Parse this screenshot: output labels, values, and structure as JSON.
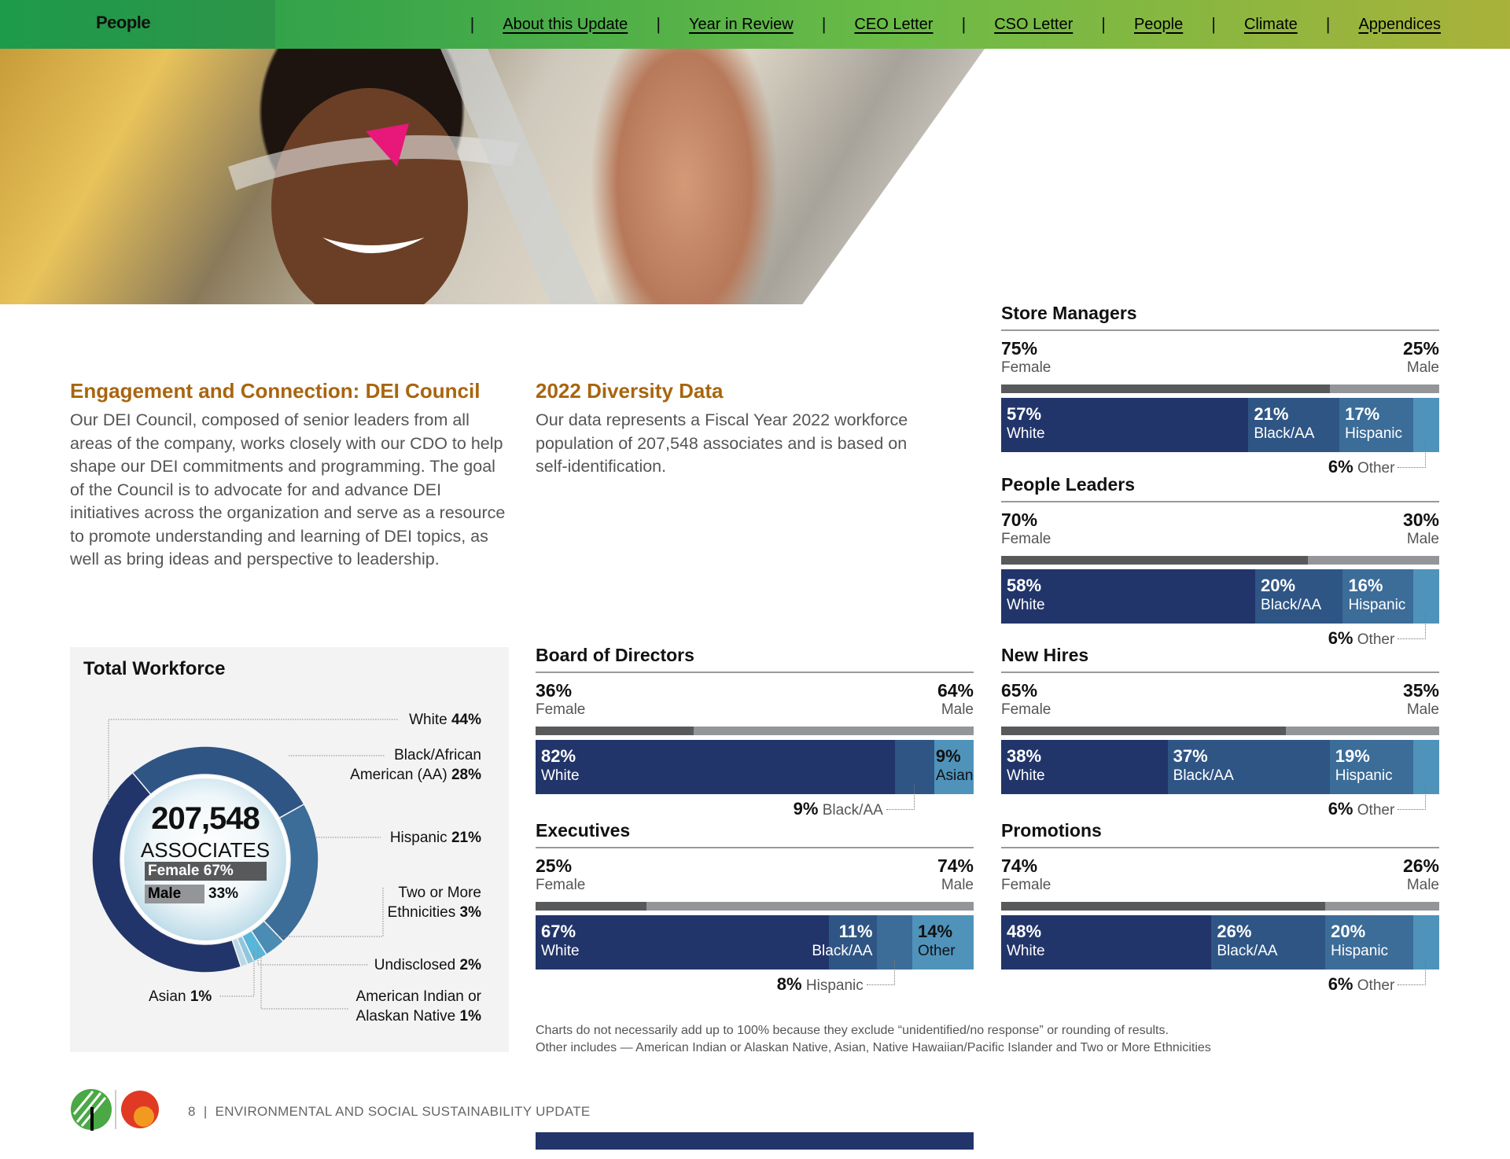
{
  "header": {
    "section_title": "People",
    "nav": [
      "About this Update",
      "Year in Review",
      "CEO Letter",
      "CSO Letter",
      "People",
      "Climate",
      "Appendices"
    ],
    "separator": "|"
  },
  "dei_council": {
    "title": "Engagement and Connection: DEI Council",
    "body": "Our DEI Council, composed of senior leaders from all areas of the company, works closely with our CDO to help shape our DEI commitments and programming. The goal of the Council is to advocate for and advance DEI initiatives across the organization and serve as a resource to promote understanding and learning of DEI topics, as well as bring ideas and perspective to leadership."
  },
  "diversity_data": {
    "title": "2022 Diversity Data",
    "body": "Our data represents a Fiscal Year 2022 workforce population of 207,548 associates and is based on self-identification."
  },
  "chart_data": [
    {
      "type": "pie",
      "title": "Total Workforce",
      "total": "207,548",
      "total_label": "ASSOCIATES",
      "gender": [
        {
          "label": "Female",
          "value": "67%",
          "pct": 67,
          "color": "#58595b"
        },
        {
          "label": "Male",
          "value": "33%",
          "pct": 33,
          "color": "#939598"
        }
      ],
      "slices": [
        {
          "label": "Black/African American (AA)",
          "value": 28,
          "color": "#2f5585"
        },
        {
          "label": "Hispanic",
          "value": 21,
          "color": "#3c6c98"
        },
        {
          "label": "Two or More Ethnicities",
          "value": 3,
          "color": "#4a8cb3"
        },
        {
          "label": "Undisclosed",
          "value": 2,
          "color": "#58b6d8"
        },
        {
          "label": "American Indian or Alaskan Native",
          "value": 1,
          "color": "#8fc6de"
        },
        {
          "label": "Asian",
          "value": 1,
          "color": "#b9d8e6"
        },
        {
          "label": "White",
          "value": 44,
          "color": "#22356a"
        }
      ],
      "legend_labels": {
        "white": [
          "White",
          "44%"
        ],
        "black": [
          "Black/African",
          "American (AA)",
          "28%"
        ],
        "hispanic": [
          "Hispanic",
          "21%"
        ],
        "two_more": [
          "Two or More",
          "Ethnicities",
          "3%"
        ],
        "undisclosed": [
          "Undisclosed",
          "2%"
        ],
        "am_indian": [
          "American Indian or",
          "Alaskan Native",
          "1%"
        ],
        "asian": [
          "Asian",
          "1%"
        ]
      }
    },
    {
      "type": "bar",
      "stacked": true,
      "title": "Board of Directors",
      "gender": {
        "female": {
          "value": "36%",
          "label": "Female"
        },
        "male": {
          "value": "64%",
          "label": "Male"
        }
      },
      "segments": [
        {
          "value": "82%",
          "label": "White",
          "color": "#22356a"
        },
        {
          "value": "9%",
          "label": "Black/AA",
          "color": "#2f5585",
          "inline": false
        },
        {
          "value": "9%",
          "label": "Asian",
          "color": "#4f93bb",
          "dark": true
        }
      ],
      "callout": {
        "segment": 1,
        "value": "9%",
        "label": "Black/AA"
      }
    },
    {
      "type": "bar",
      "stacked": true,
      "title": "Executives",
      "gender": {
        "female": {
          "value": "25%",
          "label": "Female"
        },
        "male": {
          "value": "74%",
          "label": "Male"
        }
      },
      "segments": [
        {
          "value": "67%",
          "label": "White",
          "color": "#22356a"
        },
        {
          "value": "11%",
          "label": "Black/AA",
          "color": "#2f5585",
          "align": "right"
        },
        {
          "value": "8%",
          "label": "Hispanic",
          "color": "#3c6c98",
          "inline": false
        },
        {
          "value": "14%",
          "label": "Other",
          "color": "#4f93bb",
          "dark": true
        }
      ],
      "callout": {
        "segment": 2,
        "value": "8%",
        "label": "Hispanic"
      }
    },
    {
      "type": "bar",
      "stacked": true,
      "title": "Store Managers",
      "gender": {
        "female": {
          "value": "75%",
          "label": "Female"
        },
        "male": {
          "value": "25%",
          "label": "Male"
        }
      },
      "segments": [
        {
          "value": "57%",
          "label": "White",
          "color": "#22356a"
        },
        {
          "value": "21%",
          "label": "Black/AA",
          "color": "#2f5585"
        },
        {
          "value": "17%",
          "label": "Hispanic",
          "color": "#3c6c98"
        },
        {
          "value": "6%",
          "label": "Other",
          "color": "#4f93bb",
          "inline": false
        }
      ],
      "callout": {
        "segment": 3,
        "value": "6%",
        "label": "Other"
      }
    },
    {
      "type": "bar",
      "stacked": true,
      "title": "People Leaders",
      "gender": {
        "female": {
          "value": "70%",
          "label": "Female"
        },
        "male": {
          "value": "30%",
          "label": "Male"
        }
      },
      "segments": [
        {
          "value": "58%",
          "label": "White",
          "color": "#22356a"
        },
        {
          "value": "20%",
          "label": "Black/AA",
          "color": "#2f5585"
        },
        {
          "value": "16%",
          "label": "Hispanic",
          "color": "#3c6c98"
        },
        {
          "value": "6%",
          "label": "Other",
          "color": "#4f93bb",
          "inline": false
        }
      ],
      "callout": {
        "segment": 3,
        "value": "6%",
        "label": "Other"
      }
    },
    {
      "type": "bar",
      "stacked": true,
      "title": "New Hires",
      "gender": {
        "female": {
          "value": "65%",
          "label": "Female"
        },
        "male": {
          "value": "35%",
          "label": "Male"
        }
      },
      "segments": [
        {
          "value": "38%",
          "label": "White",
          "color": "#22356a"
        },
        {
          "value": "37%",
          "label": "Black/AA",
          "color": "#2f5585"
        },
        {
          "value": "19%",
          "label": "Hispanic",
          "color": "#3c6c98"
        },
        {
          "value": "6%",
          "label": "Other",
          "color": "#4f93bb",
          "inline": false
        }
      ],
      "callout": {
        "segment": 3,
        "value": "6%",
        "label": "Other"
      }
    },
    {
      "type": "bar",
      "stacked": true,
      "title": "Promotions",
      "gender": {
        "female": {
          "value": "74%",
          "label": "Female"
        },
        "male": {
          "value": "26%",
          "label": "Male"
        }
      },
      "segments": [
        {
          "value": "48%",
          "label": "White",
          "color": "#22356a"
        },
        {
          "value": "26%",
          "label": "Black/AA",
          "color": "#2f5585"
        },
        {
          "value": "20%",
          "label": "Hispanic",
          "color": "#3c6c98"
        },
        {
          "value": "6%",
          "label": "Other",
          "color": "#4f93bb",
          "inline": false
        }
      ],
      "callout": {
        "segment": 3,
        "value": "6%",
        "label": "Other"
      }
    }
  ],
  "colors": {
    "female": "#58595b",
    "male": "#939598",
    "heading": "#a8650f"
  },
  "footnote": [
    "Charts do not necessarily add up to 100% because they exclude “unidentified/no response” or rounding of results.",
    "Other includes — American Indian or Alaskan Native, Asian, Native Hawaiian/Pacific Islander and Two or More Ethnicities"
  ],
  "footer": {
    "page": "8",
    "separator": "|",
    "title": "ENVIRONMENTAL AND SOCIAL SUSTAINABILITY UPDATE"
  }
}
